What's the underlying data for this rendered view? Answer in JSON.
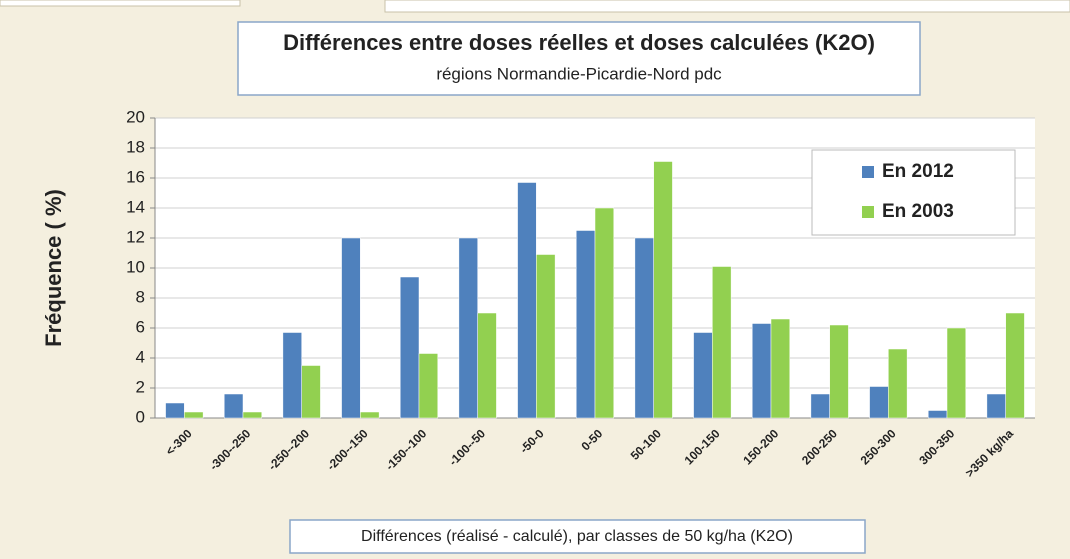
{
  "chart_data": {
    "type": "bar",
    "title": "Différences entre doses réelles et doses calculées (K2O)",
    "subtitle": "régions Normandie-Picardie-Nord pdc",
    "y_label": "Fréquence ( %)",
    "x_label": "Différences  (réalisé - calculé), par classes de 50 kg/ha (K2O)",
    "categories": [
      "<-300",
      "-300--250",
      "-250--200",
      "-200--150",
      "-150--100",
      "-100--50",
      "-50-0",
      "0-50",
      "50-100",
      "100-150",
      "150-200",
      "200-250",
      "250-300",
      "300-350",
      ">350 kg/ha"
    ],
    "series": [
      {
        "name": "En 2012",
        "color": "#4f81bd",
        "values": [
          1.0,
          1.6,
          5.7,
          12.0,
          9.4,
          12.0,
          15.7,
          12.5,
          12.0,
          5.7,
          6.3,
          1.6,
          2.1,
          0.5,
          1.6
        ]
      },
      {
        "name": "En 2003",
        "color": "#92d050",
        "values": [
          0.4,
          0.4,
          3.5,
          0.4,
          4.3,
          7.0,
          10.9,
          14.0,
          17.1,
          10.1,
          6.6,
          6.2,
          4.6,
          6.0,
          7.0
        ]
      }
    ],
    "ylim": [
      0,
      20
    ],
    "yticks": [
      0,
      2,
      4,
      6,
      8,
      10,
      12,
      14,
      16,
      18,
      20
    ],
    "grid": true,
    "legend": "top-right"
  }
}
